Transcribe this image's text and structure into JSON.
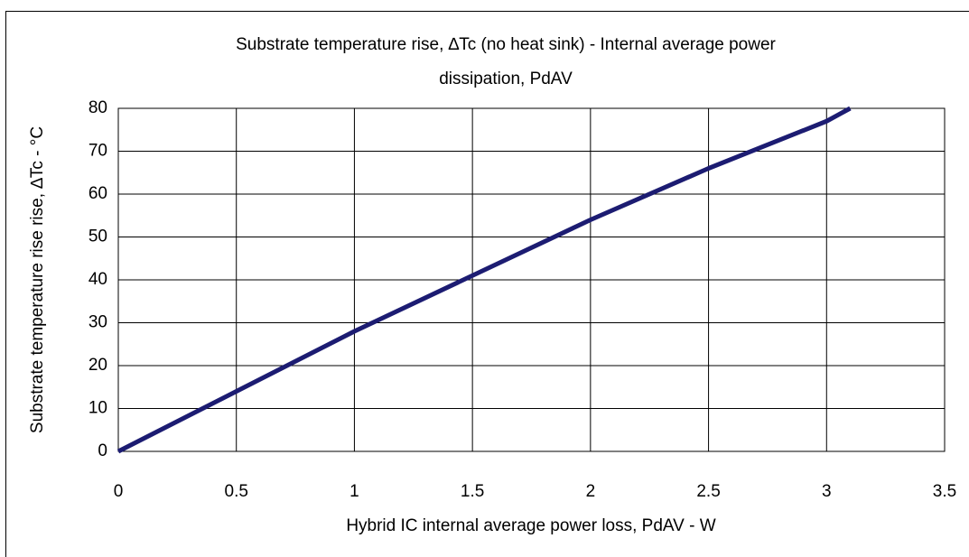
{
  "chart_data": {
    "type": "line",
    "title": [
      "Substrate temperature rise, ∆Tc (no heat sink) - Internal average power",
      "dissipation, PdAV"
    ],
    "x_label": "Hybrid IC internal average power loss, PdAV - W",
    "y_label": "Substrate temperature rise rise, ∆Tc - °C",
    "x": [
      0,
      0.5,
      1,
      1.5,
      2,
      2.5,
      3,
      3.1
    ],
    "series": [
      {
        "name": "∆Tc",
        "color": "#1c1c72",
        "values": [
          0,
          14,
          28,
          41,
          54,
          66,
          77,
          80
        ]
      }
    ],
    "xlim": [
      0,
      3.5
    ],
    "xticks": [
      0,
      0.5,
      1,
      1.5,
      2,
      2.5,
      3,
      3.5
    ],
    "ylim": [
      0,
      80
    ],
    "yticks": [
      0,
      10,
      20,
      30,
      40,
      50,
      60,
      70,
      80
    ],
    "grid": true
  }
}
